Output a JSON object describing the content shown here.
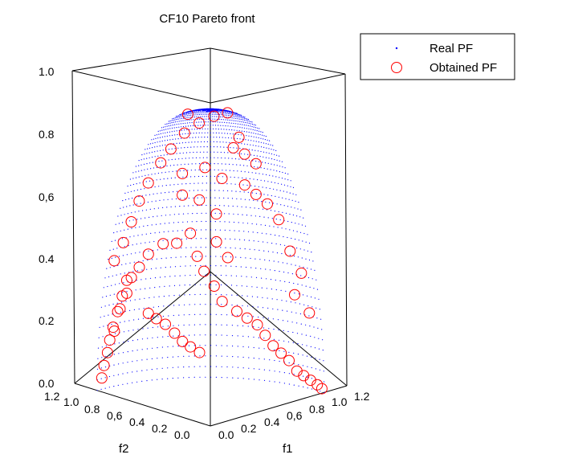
{
  "chart_data": {
    "type": "scatter",
    "title": "CF10 Pareto front",
    "axes": {
      "z_ticks": [
        "0.0",
        "0.2",
        "0.4",
        "0,6",
        "0.8",
        "1.0"
      ],
      "z_range": [
        0,
        1
      ],
      "f2_label": "f2",
      "f2_ticks": [
        "1.2",
        "1.0",
        "0.8",
        "0,6",
        "0.4",
        "0.2",
        "0.0"
      ],
      "f1_label": "f1",
      "f1_ticks": [
        "0.0",
        "0.2",
        "0.4",
        "0,6",
        "0.8",
        "1.0",
        "1.2"
      ],
      "xy_range": [
        0,
        1.2
      ],
      "grid": false,
      "box": true
    },
    "legend": {
      "placement": "top-right",
      "entries": [
        {
          "label": "Real PF",
          "marker": "dot",
          "color": "#0000ff"
        },
        {
          "label": "Obtained PF",
          "marker": "circle",
          "color": "#ff0000"
        }
      ]
    },
    "series": [
      {
        "name": "Real PF",
        "marker": "dot",
        "color": "#0000ff",
        "description_of_values": "unit-sphere surface f1^2+f2^2+f3^2=1 with f1,f2,f3>=0 (points [f1,f2,f3])",
        "sampled_points": [
          [
            0.0,
            1.0,
            0.0
          ],
          [
            0.0,
            0.87,
            0.5
          ],
          [
            0.0,
            0.5,
            0.87
          ],
          [
            0.0,
            0.0,
            1.0
          ],
          [
            0.5,
            0.87,
            0.0
          ],
          [
            0.87,
            0.5,
            0.0
          ],
          [
            1.0,
            0.0,
            0.0
          ],
          [
            0.43,
            0.75,
            0.5
          ],
          [
            0.75,
            0.43,
            0.5
          ],
          [
            0.25,
            0.43,
            0.87
          ],
          [
            0.43,
            0.25,
            0.87
          ],
          [
            0.61,
            0.61,
            0.5
          ],
          [
            0.35,
            0.35,
            0.87
          ],
          [
            0.58,
            0.58,
            0.58
          ]
        ]
      },
      {
        "name": "Obtained PF",
        "marker": "circle",
        "color": "#ff0000",
        "description_of_values": "sampled approximation points [f1,f2,f3]",
        "points": [
          [
            0.02,
            0.98,
            0.04
          ],
          [
            0.03,
            0.97,
            0.08
          ],
          [
            0.05,
            0.96,
            0.12
          ],
          [
            0.06,
            0.95,
            0.16
          ],
          [
            0.08,
            0.94,
            0.2
          ],
          [
            0.1,
            0.92,
            0.25
          ],
          [
            0.12,
            0.9,
            0.3
          ],
          [
            0.14,
            0.88,
            0.35
          ],
          [
            0.05,
            0.9,
            0.42
          ],
          [
            0.08,
            0.85,
            0.48
          ],
          [
            0.1,
            0.8,
            0.55
          ],
          [
            0.12,
            0.75,
            0.62
          ],
          [
            0.15,
            0.7,
            0.68
          ],
          [
            0.18,
            0.62,
            0.75
          ],
          [
            0.2,
            0.55,
            0.8
          ],
          [
            0.22,
            0.45,
            0.86
          ],
          [
            0.25,
            0.35,
            0.9
          ],
          [
            0.28,
            0.25,
            0.93
          ],
          [
            0.3,
            0.15,
            0.95
          ],
          [
            0.1,
            0.3,
            0.95
          ],
          [
            0.35,
            0.6,
            0.7
          ],
          [
            0.45,
            0.5,
            0.72
          ],
          [
            0.55,
            0.45,
            0.68
          ],
          [
            0.6,
            0.55,
            0.55
          ],
          [
            0.65,
            0.6,
            0.45
          ],
          [
            0.7,
            0.55,
            0.4
          ],
          [
            0.4,
            0.65,
            0.62
          ],
          [
            0.5,
            0.6,
            0.6
          ],
          [
            0.52,
            0.7,
            0.48
          ],
          [
            0.58,
            0.7,
            0.4
          ],
          [
            0.45,
            0.75,
            0.45
          ],
          [
            0.38,
            0.8,
            0.45
          ],
          [
            0.3,
            0.85,
            0.42
          ],
          [
            0.62,
            0.68,
            0.35
          ],
          [
            0.68,
            0.65,
            0.3
          ],
          [
            0.72,
            0.62,
            0.25
          ],
          [
            0.78,
            0.55,
            0.22
          ],
          [
            0.82,
            0.5,
            0.2
          ],
          [
            0.86,
            0.45,
            0.18
          ],
          [
            0.88,
            0.4,
            0.15
          ],
          [
            0.9,
            0.35,
            0.12
          ],
          [
            0.92,
            0.3,
            0.1
          ],
          [
            0.94,
            0.25,
            0.08
          ],
          [
            0.96,
            0.2,
            0.05
          ],
          [
            0.97,
            0.15,
            0.04
          ],
          [
            0.98,
            0.1,
            0.03
          ],
          [
            0.99,
            0.05,
            0.02
          ],
          [
            1.0,
            0.02,
            0.01
          ],
          [
            0.8,
            0.2,
            0.55
          ],
          [
            0.75,
            0.25,
            0.6
          ],
          [
            0.7,
            0.3,
            0.63
          ],
          [
            0.65,
            0.35,
            0.66
          ],
          [
            0.6,
            0.2,
            0.75
          ],
          [
            0.55,
            0.25,
            0.78
          ],
          [
            0.5,
            0.3,
            0.8
          ],
          [
            0.45,
            0.2,
            0.85
          ],
          [
            0.85,
            0.15,
            0.45
          ],
          [
            0.9,
            0.1,
            0.38
          ],
          [
            0.95,
            0.08,
            0.25
          ],
          [
            0.92,
            0.18,
            0.3
          ],
          [
            0.2,
            0.9,
            0.35
          ],
          [
            0.25,
            0.88,
            0.38
          ],
          [
            0.18,
            0.92,
            0.3
          ],
          [
            0.15,
            0.95,
            0.25
          ],
          [
            0.12,
            0.97,
            0.18
          ],
          [
            0.35,
            0.9,
            0.22
          ],
          [
            0.4,
            0.88,
            0.2
          ],
          [
            0.45,
            0.85,
            0.18
          ],
          [
            0.5,
            0.82,
            0.15
          ],
          [
            0.55,
            0.8,
            0.12
          ],
          [
            0.6,
            0.78,
            0.1
          ],
          [
            0.65,
            0.75,
            0.08
          ]
        ]
      }
    ]
  }
}
